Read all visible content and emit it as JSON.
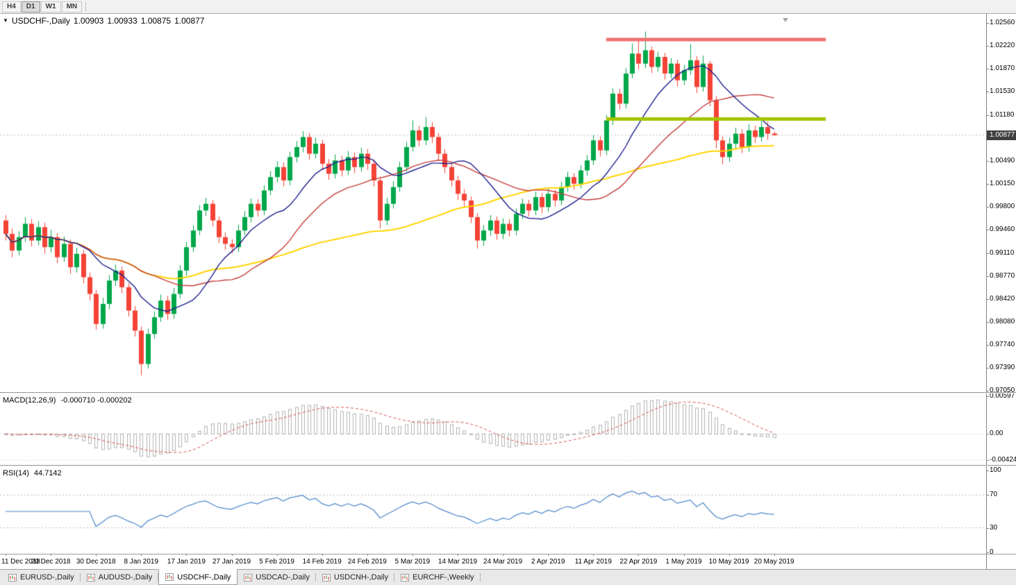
{
  "toolbar": {
    "timeframes": [
      "H4",
      "D1",
      "W1",
      "MN"
    ],
    "active_timeframe": "D1"
  },
  "chart": {
    "symbol_label": "USDCHF-,Daily",
    "ohlc": {
      "open": "1.00903",
      "high": "1.00933",
      "low": "1.00875",
      "close": "1.00877"
    },
    "current_price": "1.00877",
    "price_axis_ticks": [
      "1.02560",
      "1.02220",
      "1.01870",
      "1.01530",
      "1.01180",
      "1.00840",
      "1.00490",
      "1.00150",
      "0.99800",
      "0.99460",
      "0.99110",
      "0.98770",
      "0.98420",
      "0.98080",
      "0.97740",
      "0.97390",
      "0.97050"
    ],
    "colors": {
      "bull": "#00a74a",
      "bear": "#f44336",
      "ma_fast_blue": "#1b1e8c",
      "ma_mid_red": "#c43a3a",
      "ma_slow_yellow": "#ffd400",
      "resistance_line": "#f07070",
      "support_line": "#a4c400",
      "macd_histogram": "#b2b2b2",
      "macd_signal": "#d94f4f",
      "rsi_line": "#4a86c8",
      "price_badge_bg": "#3f3f3f",
      "grid_dotted": "#b9b9b9"
    }
  },
  "macd_panel": {
    "label": "MACD(12,26,9)",
    "values_label": "-0.000710 -0.000202",
    "axis_labels": [
      "0.00597",
      "0.00",
      "-0.004243"
    ]
  },
  "rsi_panel": {
    "label": "RSI(14)",
    "value_label": "44.7142",
    "axis_labels": [
      "100",
      "70",
      "30",
      "0"
    ]
  },
  "date_axis": [
    "11 Dec 2018",
    "20 Dec 2018",
    "30 Dec 2018",
    "8 Jan 2019",
    "17 Jan 2019",
    "27 Jan 2019",
    "5 Feb 2019",
    "14 Feb 2019",
    "24 Feb 2019",
    "5 Mar 2019",
    "14 Mar 2019",
    "24 Mar 2019",
    "2 Apr 2019",
    "11 Apr 2019",
    "22 Apr 2019",
    "1 May 2019",
    "10 May 2019",
    "20 May 2019"
  ],
  "tabs": {
    "items": [
      "EURUSD-,Daily",
      "AUDUSD-,Daily",
      "USDCHF-,Daily",
      "USDCAD-,Daily",
      "USDCNH-,Daily",
      "EURCHF-,Weekly"
    ],
    "active": "USDCHF-,Daily"
  },
  "chart_data": {
    "type": "candlestick",
    "symbol": "USDCHF",
    "timeframe": "Daily",
    "bars_per_date_label": 7,
    "price_range": {
      "max": 1.0256,
      "min": 0.9705
    },
    "macd_axis_values": [
      0.00597,
      0,
      -0.004243
    ],
    "rsi_axis_values": [
      100,
      70,
      30,
      0
    ],
    "rsi_dashed_levels": [
      70,
      30
    ],
    "moving_averages": {
      "fast": 12,
      "mid": 24,
      "slow": 55
    },
    "macd_params": [
      12,
      26,
      9
    ],
    "rsi_period": 14,
    "objects": [
      {
        "type": "resistance-line",
        "price": 1.0231,
        "from_bar": 93,
        "to_bar": 127,
        "width": 5
      },
      {
        "type": "support-line",
        "price": 1.0112,
        "from_bar": 93,
        "to_bar": 127,
        "width": 5
      }
    ],
    "candles": [
      [
        0.996,
        0.9968,
        0.993,
        0.994
      ],
      [
        0.994,
        0.9948,
        0.9905,
        0.9915
      ],
      [
        0.9915,
        0.9944,
        0.9908,
        0.9935
      ],
      [
        0.9935,
        0.9965,
        0.9928,
        0.9955
      ],
      [
        0.9955,
        0.9962,
        0.9921,
        0.993
      ],
      [
        0.993,
        0.9959,
        0.9923,
        0.995
      ],
      [
        0.995,
        0.9957,
        0.991,
        0.992
      ],
      [
        0.992,
        0.9946,
        0.9912,
        0.9935
      ],
      [
        0.9935,
        0.9941,
        0.9896,
        0.9905
      ],
      [
        0.9905,
        0.9936,
        0.9898,
        0.9925
      ],
      [
        0.9925,
        0.9931,
        0.988,
        0.989
      ],
      [
        0.989,
        0.9919,
        0.9882,
        0.991
      ],
      [
        0.991,
        0.9916,
        0.9866,
        0.9875
      ],
      [
        0.9875,
        0.9882,
        0.984,
        0.985
      ],
      [
        0.985,
        0.9856,
        0.9796,
        0.9805
      ],
      [
        0.9805,
        0.9844,
        0.9798,
        0.9835
      ],
      [
        0.9835,
        0.9878,
        0.9827,
        0.987
      ],
      [
        0.987,
        0.9894,
        0.9862,
        0.9885
      ],
      [
        0.9885,
        0.9891,
        0.9851,
        0.986
      ],
      [
        0.986,
        0.9866,
        0.9816,
        0.9825
      ],
      [
        0.9825,
        0.9832,
        0.9786,
        0.9795
      ],
      [
        0.9795,
        0.9801,
        0.9728,
        0.9745
      ],
      [
        0.9745,
        0.9798,
        0.9738,
        0.979
      ],
      [
        0.979,
        0.9824,
        0.9783,
        0.9815
      ],
      [
        0.9815,
        0.9849,
        0.9808,
        0.984
      ],
      [
        0.984,
        0.9847,
        0.9811,
        0.982
      ],
      [
        0.982,
        0.9859,
        0.9813,
        0.985
      ],
      [
        0.985,
        0.9893,
        0.9843,
        0.9885
      ],
      [
        0.9885,
        0.9928,
        0.9877,
        0.992
      ],
      [
        0.992,
        0.9953,
        0.9913,
        0.9945
      ],
      [
        0.9945,
        0.9983,
        0.9938,
        0.9975
      ],
      [
        0.9975,
        0.9994,
        0.9967,
        0.9985
      ],
      [
        0.9985,
        0.9991,
        0.9951,
        0.996
      ],
      [
        0.996,
        0.9966,
        0.9926,
        0.9935
      ],
      [
        0.9935,
        0.9942,
        0.9916,
        0.9925
      ],
      [
        0.9925,
        0.9932,
        0.9911,
        0.992
      ],
      [
        0.992,
        0.9954,
        0.9913,
        0.9945
      ],
      [
        0.9945,
        0.9974,
        0.9938,
        0.9965
      ],
      [
        0.9965,
        0.9993,
        0.9957,
        0.9985
      ],
      [
        0.9985,
        0.9992,
        0.9966,
        0.9975
      ],
      [
        0.9975,
        1.0013,
        0.9968,
        1.0005
      ],
      [
        1.0005,
        1.0034,
        0.9998,
        1.0025
      ],
      [
        1.0025,
        1.0049,
        1.0017,
        1.004
      ],
      [
        1.004,
        1.0047,
        1.0011,
        1.002
      ],
      [
        1.002,
        1.0063,
        1.0013,
        1.0055
      ],
      [
        1.0055,
        1.0079,
        1.0047,
        1.007
      ],
      [
        1.007,
        1.0094,
        1.0062,
        1.0085
      ],
      [
        1.0085,
        1.0091,
        1.0051,
        1.006
      ],
      [
        1.006,
        1.0084,
        1.0053,
        1.0075
      ],
      [
        1.0075,
        1.0081,
        1.0036,
        1.0045
      ],
      [
        1.0045,
        1.0052,
        1.0021,
        1.003
      ],
      [
        1.003,
        1.0059,
        1.0023,
        1.005
      ],
      [
        1.005,
        1.0057,
        1.0026,
        1.0035
      ],
      [
        1.0035,
        1.0064,
        1.0028,
        1.0055
      ],
      [
        1.0055,
        1.0062,
        1.0031,
        1.004
      ],
      [
        1.004,
        1.0069,
        1.0033,
        1.006
      ],
      [
        1.006,
        1.0067,
        1.0036,
        1.0045
      ],
      [
        1.0045,
        1.0051,
        1.0011,
        1.002
      ],
      [
        1.002,
        1.0026,
        0.9948,
        0.996
      ],
      [
        0.996,
        0.9994,
        0.9953,
        0.9985
      ],
      [
        0.9985,
        1.0019,
        0.9978,
        1.001
      ],
      [
        1.001,
        1.0048,
        1.0003,
        1.004
      ],
      [
        1.004,
        1.0078,
        1.0033,
        1.007
      ],
      [
        1.007,
        1.011,
        1.0063,
        1.0095
      ],
      [
        1.0095,
        1.0102,
        1.0071,
        1.008
      ],
      [
        1.008,
        1.0115,
        1.0073,
        1.01
      ],
      [
        1.01,
        1.0107,
        1.0076,
        1.0085
      ],
      [
        1.0085,
        1.0091,
        1.0051,
        1.006
      ],
      [
        1.006,
        1.0067,
        1.0031,
        1.004
      ],
      [
        1.004,
        1.0046,
        1.0011,
        1.002
      ],
      [
        1.002,
        1.0027,
        0.9991,
        1.0
      ],
      [
        1.0,
        1.0007,
        0.9981,
        0.999
      ],
      [
        0.999,
        0.9996,
        0.9956,
        0.9965
      ],
      [
        0.9965,
        0.9971,
        0.9918,
        0.993
      ],
      [
        0.993,
        0.9953,
        0.9922,
        0.9945
      ],
      [
        0.9945,
        0.9968,
        0.9937,
        0.996
      ],
      [
        0.996,
        0.9966,
        0.9931,
        0.994
      ],
      [
        0.994,
        0.9963,
        0.9932,
        0.9955
      ],
      [
        0.9955,
        0.9962,
        0.9936,
        0.9945
      ],
      [
        0.9945,
        0.9978,
        0.9938,
        0.997
      ],
      [
        0.997,
        0.9993,
        0.9962,
        0.9985
      ],
      [
        0.9985,
        0.9991,
        0.9966,
        0.9975
      ],
      [
        0.9975,
        1.0003,
        0.9968,
        0.9995
      ],
      [
        0.9995,
        1.0001,
        0.9971,
        0.998
      ],
      [
        0.998,
        1.0008,
        0.9973,
        1.0
      ],
      [
        1.0,
        1.0006,
        0.9981,
        0.999
      ],
      [
        0.999,
        1.0018,
        0.9983,
        1.001
      ],
      [
        1.001,
        1.0033,
        1.0003,
        1.0025
      ],
      [
        1.0025,
        1.0031,
        1.0006,
        1.0015
      ],
      [
        1.0015,
        1.0043,
        1.0008,
        1.0035
      ],
      [
        1.0035,
        1.0058,
        1.0027,
        1.005
      ],
      [
        1.005,
        1.0088,
        1.0043,
        1.008
      ],
      [
        1.008,
        1.0086,
        1.0056,
        1.0065
      ],
      [
        1.0065,
        1.0118,
        1.0058,
        1.011
      ],
      [
        1.011,
        1.0158,
        1.0103,
        1.015
      ],
      [
        1.015,
        1.0157,
        1.0126,
        1.0135
      ],
      [
        1.0135,
        1.0188,
        1.0128,
        1.018
      ],
      [
        1.018,
        1.0225,
        1.0173,
        1.021
      ],
      [
        1.021,
        1.0232,
        1.0186,
        1.0195
      ],
      [
        1.0195,
        1.0243,
        1.0188,
        1.0215
      ],
      [
        1.0215,
        1.0221,
        1.0181,
        1.019
      ],
      [
        1.019,
        1.0213,
        1.0183,
        1.0205
      ],
      [
        1.0205,
        1.0211,
        1.0171,
        1.018
      ],
      [
        1.018,
        1.0203,
        1.0173,
        1.0195
      ],
      [
        1.0195,
        1.0201,
        1.0161,
        1.017
      ],
      [
        1.017,
        1.0193,
        1.0163,
        1.0185
      ],
      [
        1.0185,
        1.0224,
        1.0178,
        1.02
      ],
      [
        1.02,
        1.0206,
        1.0151,
        1.016
      ],
      [
        1.016,
        1.0207,
        1.0153,
        1.0195
      ],
      [
        1.0195,
        1.0199,
        1.0131,
        1.014
      ],
      [
        1.014,
        1.0146,
        1.0068,
        1.008
      ],
      [
        1.008,
        1.0086,
        1.0044,
        1.0055
      ],
      [
        1.0055,
        1.0084,
        1.0048,
        1.0075
      ],
      [
        1.0075,
        1.0099,
        1.0068,
        1.009
      ],
      [
        1.009,
        1.0097,
        1.0061,
        1.007
      ],
      [
        1.007,
        1.0104,
        1.0063,
        1.0095
      ],
      [
        1.0095,
        1.0102,
        1.0076,
        1.0085
      ],
      [
        1.0085,
        1.0109,
        1.0078,
        1.01
      ],
      [
        1.01,
        1.0108,
        1.0081,
        1.009
      ],
      [
        1.00903,
        1.00933,
        1.00875,
        1.00877
      ]
    ]
  }
}
